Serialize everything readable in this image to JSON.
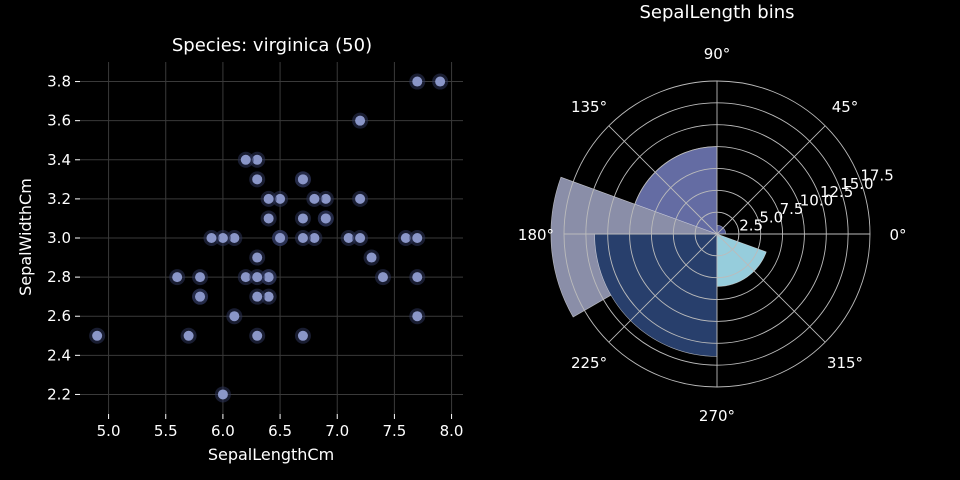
{
  "colors": {
    "background": "#000000",
    "text": "#ffffff",
    "grid": "#3a3a3a",
    "polar_grid": "#bbbbbb",
    "point": "#8a96c8",
    "point_halo": "#2e355a"
  },
  "chart_data": [
    {
      "type": "scatter",
      "title": "Species: virginica (50)",
      "xlabel": "SepalLengthCm",
      "ylabel": "SepalWidthCm",
      "xlim": [
        4.75,
        8.1
      ],
      "ylim": [
        2.1,
        3.9
      ],
      "xticks": [
        5.0,
        5.5,
        6.0,
        6.5,
        7.0,
        7.5,
        8.0
      ],
      "xtick_labels": [
        "5.0",
        "5.5",
        "6.0",
        "6.5",
        "7.0",
        "7.5",
        "8.0"
      ],
      "yticks": [
        2.2,
        2.4,
        2.6,
        2.8,
        3.0,
        3.2,
        3.4,
        3.6,
        3.8
      ],
      "ytick_labels": [
        "2.2",
        "2.4",
        "2.6",
        "2.8",
        "3.0",
        "3.2",
        "3.4",
        "3.6",
        "3.8"
      ],
      "grid": true,
      "points": [
        [
          6.3,
          3.3
        ],
        [
          5.8,
          2.7
        ],
        [
          7.1,
          3.0
        ],
        [
          6.3,
          2.9
        ],
        [
          6.5,
          3.0
        ],
        [
          7.6,
          3.0
        ],
        [
          4.9,
          2.5
        ],
        [
          7.3,
          2.9
        ],
        [
          6.7,
          2.5
        ],
        [
          7.2,
          3.6
        ],
        [
          6.5,
          3.2
        ],
        [
          6.4,
          2.7
        ],
        [
          6.8,
          3.0
        ],
        [
          5.7,
          2.5
        ],
        [
          5.8,
          2.8
        ],
        [
          6.4,
          3.2
        ],
        [
          6.5,
          3.0
        ],
        [
          7.7,
          3.8
        ],
        [
          7.7,
          2.6
        ],
        [
          6.0,
          2.2
        ],
        [
          6.9,
          3.2
        ],
        [
          5.6,
          2.8
        ],
        [
          7.7,
          2.8
        ],
        [
          6.3,
          2.7
        ],
        [
          6.7,
          3.3
        ],
        [
          7.2,
          3.2
        ],
        [
          6.2,
          2.8
        ],
        [
          6.1,
          3.0
        ],
        [
          6.4,
          2.8
        ],
        [
          7.2,
          3.0
        ],
        [
          7.4,
          2.8
        ],
        [
          7.9,
          3.8
        ],
        [
          6.4,
          2.8
        ],
        [
          6.3,
          2.8
        ],
        [
          6.1,
          2.6
        ],
        [
          7.7,
          3.0
        ],
        [
          6.3,
          3.4
        ],
        [
          6.4,
          3.1
        ],
        [
          6.0,
          3.0
        ],
        [
          6.9,
          3.1
        ],
        [
          6.7,
          3.1
        ],
        [
          6.9,
          3.1
        ],
        [
          5.8,
          2.7
        ],
        [
          6.8,
          3.2
        ],
        [
          6.7,
          3.3
        ],
        [
          6.7,
          3.0
        ],
        [
          6.3,
          2.5
        ],
        [
          6.5,
          3.0
        ],
        [
          6.2,
          3.4
        ],
        [
          5.9,
          3.0
        ]
      ]
    },
    {
      "type": "bar",
      "subtype": "polar",
      "title": "SepalLength bins",
      "rlim": [
        0,
        17.5
      ],
      "rticks": [
        2.5,
        5.0,
        7.5,
        10.0,
        12.5,
        15.0,
        17.5
      ],
      "rtick_labels": [
        "2.5",
        "5.0",
        "7.5",
        "10.0",
        "12.5",
        "15.0",
        "17.5"
      ],
      "theta_ticks": [
        0,
        45,
        90,
        135,
        180,
        225,
        270,
        315
      ],
      "theta_tick_labels": [
        "0°",
        "45°",
        "90°",
        "135°",
        "180°",
        "225°",
        "270°",
        "315°"
      ],
      "bars": [
        {
          "theta_start": 0,
          "theta_end": 90,
          "value": 1,
          "color": "#525a96"
        },
        {
          "theta_start": 90,
          "theta_end": 180,
          "value": 10,
          "color": "#646ca3"
        },
        {
          "theta_start": 160,
          "theta_end": 210,
          "value": 19,
          "color": "#8a8ea8"
        },
        {
          "theta_start": 180,
          "theta_end": 270,
          "value": 14,
          "color": "#283f6c"
        },
        {
          "theta_start": 270,
          "theta_end": 340,
          "value": 6,
          "color": "#96cddc"
        }
      ]
    }
  ]
}
